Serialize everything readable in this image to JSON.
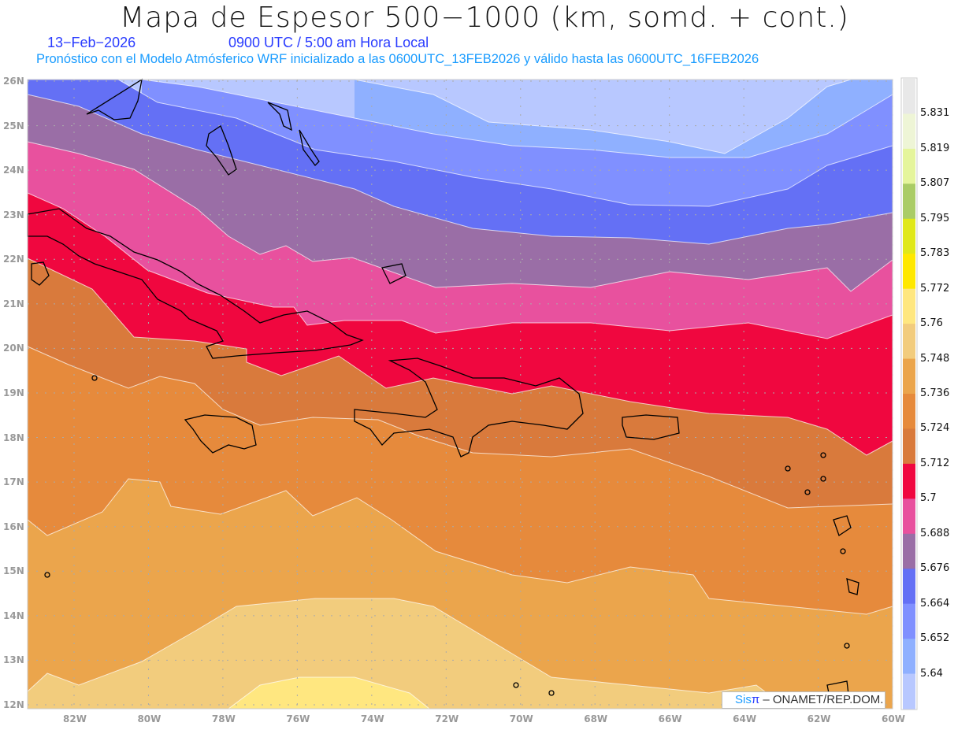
{
  "header": {
    "title": "Mapa de Espesor 500−1000 (km, somd. + cont.)",
    "date": "13−Feb−2026",
    "time": "0900 UTC / 5:00 am Hora Local",
    "subtitle": "Pronóstico con el Modelo Atmósferico WRF inicializado a las 0600UTC_13FEB2026 y válido hasta las  0600UTC_16FEB2026"
  },
  "map": {
    "lat_labels": [
      "26N",
      "25N",
      "24N",
      "23N",
      "22N",
      "21N",
      "20N",
      "19N",
      "18N",
      "17N",
      "16N",
      "15N",
      "14N",
      "13N",
      "12N"
    ],
    "lon_labels": [
      "82W",
      "80W",
      "78W",
      "76W",
      "74W",
      "72W",
      "70W",
      "68W",
      "66W",
      "64W",
      "62W",
      "60W"
    ],
    "field_band_colors": [
      "#b8c8ff",
      "#8fb0ff",
      "#8090ff",
      "#6470f5",
      "#9a6ea6",
      "#e8519e",
      "#f0073f",
      "#d97a3c",
      "#e68a3c",
      "#eba54c",
      "#f2cc7d",
      "#ffe780"
    ]
  },
  "colorbar": {
    "levels": [
      "5.831",
      "5.819",
      "5.807",
      "5.795",
      "5.783",
      "5.772",
      "5.76",
      "5.748",
      "5.736",
      "5.724",
      "5.712",
      "5.7",
      "5.688",
      "5.676",
      "5.664",
      "5.652",
      "5.64"
    ],
    "colors": [
      "#e8e8e8",
      "#eef5d6",
      "#e5f59c",
      "#aacc66",
      "#e0e819",
      "#ffe800",
      "#ffe780",
      "#f2cc7d",
      "#eba54c",
      "#e68a3c",
      "#d97a3c",
      "#f0073f",
      "#e8519e",
      "#9a6ea6",
      "#6470f5",
      "#8090ff",
      "#8fb0ff",
      "#b8c8ff"
    ]
  },
  "logo": {
    "sis": "Sis",
    "pi": "π",
    "org": " – ONAMET/REP.DOM."
  }
}
